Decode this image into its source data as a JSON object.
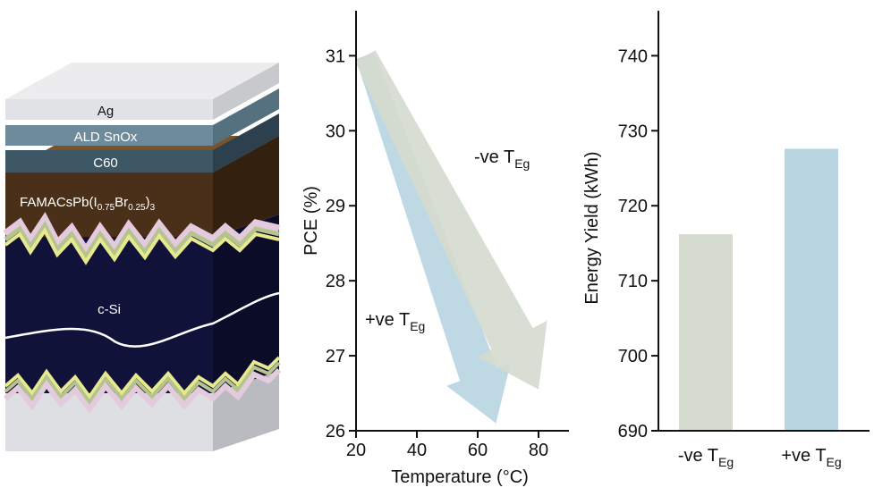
{
  "colors": {
    "neg_tc": "#d5dbcf",
    "pos_tc": "#b9d6e2",
    "axis": "#111111",
    "ag": "#e6e7e9",
    "sno": "#6e8b9b",
    "c60": "#3e5765",
    "perovskite": "#4a3018",
    "silicon": "#11123a",
    "substrate": "#dedfe2"
  },
  "stack": {
    "layers": [
      {
        "id": "ag",
        "label": "Ag"
      },
      {
        "id": "sno",
        "label": "ALD SnOx"
      },
      {
        "id": "c60",
        "label": "C60"
      },
      {
        "id": "perovskite",
        "label_main": "FAMACsPb(I",
        "label_sub1": "0.75",
        "label_mid": "Br",
        "label_sub2": "0.25",
        "label_end": ")",
        "label_sub3": "3"
      },
      {
        "id": "silicon",
        "label": "c-Si"
      }
    ]
  },
  "chart_data": [
    {
      "type": "line",
      "xlabel": "Temperature (°C)",
      "ylabel": "PCE (%)",
      "xlim": [
        20,
        90
      ],
      "ylim": [
        26,
        31.6
      ],
      "xticks": [
        20,
        40,
        60,
        80
      ],
      "yticks": [
        26,
        27,
        28,
        29,
        30,
        31
      ],
      "grid": false,
      "series": [
        {
          "name": "-ve T",
          "name_sub": "Eg",
          "style": "arrow",
          "x": [
            23,
            80
          ],
          "y": [
            31.0,
            26.55
          ]
        },
        {
          "name": "+ve T",
          "name_sub": "Eg",
          "style": "arrow",
          "x": [
            23,
            66
          ],
          "y": [
            31.0,
            26.1
          ]
        }
      ]
    },
    {
      "type": "bar",
      "xlabel": "",
      "ylabel": "Energy Yield (kWh)",
      "ylim": [
        690,
        746
      ],
      "yticks": [
        690,
        700,
        710,
        720,
        730,
        740
      ],
      "grid": false,
      "categories": [
        {
          "label": "-ve T",
          "sub": "Eg"
        },
        {
          "label": "+ve T",
          "sub": "Eg"
        }
      ],
      "values": [
        716.2,
        727.6
      ]
    }
  ]
}
